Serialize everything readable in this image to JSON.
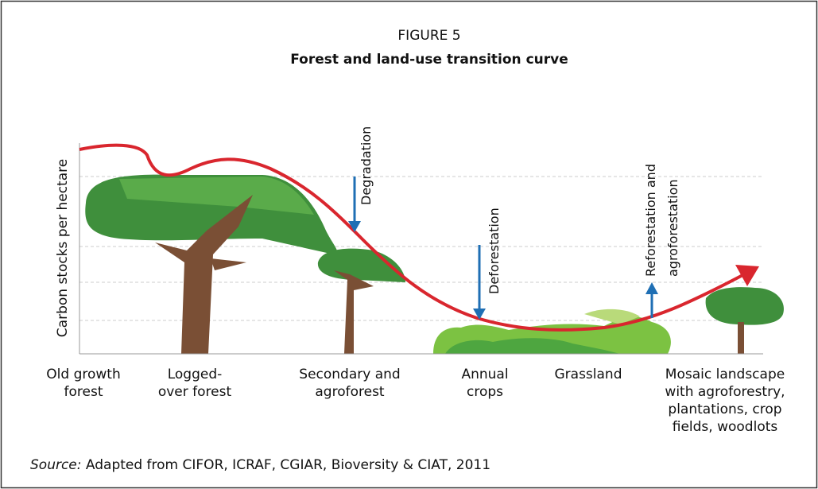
{
  "header": {
    "figure_label": "FIGURE 5",
    "title": "Forest and land-use transition curve"
  },
  "y_axis_label": "Carbon stocks per hectare",
  "annotations": {
    "degradation": [
      "Degradation"
    ],
    "deforestation": [
      "Deforestation"
    ],
    "reforestation": [
      "Reforestation and",
      "agroforestation"
    ]
  },
  "stages": [
    [
      "Old growth",
      "forest"
    ],
    [
      "Logged-",
      "over forest"
    ],
    [
      "Secondary and",
      "agroforest"
    ],
    [
      "Annual",
      "crops"
    ],
    [
      "Grassland"
    ],
    [
      "Mosaic landscape",
      "with agroforestry,",
      "plantations, crop",
      "fields, woodlots"
    ]
  ],
  "source": {
    "prefix": "Source:",
    "text": "Adapted from CIFOR, ICRAF, CGIAR, Bioversity & CIAT, 2011"
  }
}
